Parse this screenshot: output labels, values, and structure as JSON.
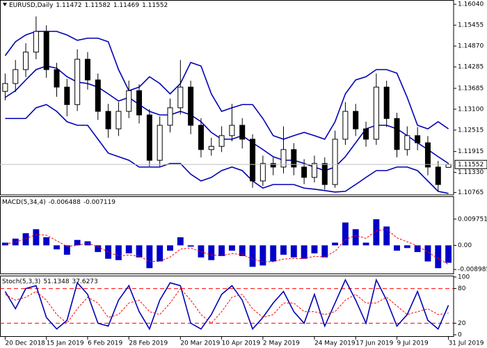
{
  "chart_data": [
    {
      "type": "candlestick",
      "symbol": "EURUSD,Daily",
      "categories": [
        "20 Dec 2018",
        null,
        null,
        null,
        "15 Jan 2019",
        null,
        null,
        null,
        "6 Feb 2019",
        null,
        null,
        null,
        "28 Feb 2019",
        null,
        null,
        null,
        null,
        "20 Mar 2019",
        null,
        null,
        null,
        "10 Apr 2019",
        null,
        null,
        null,
        "2 May 2019",
        null,
        null,
        null,
        null,
        "24 May 2019",
        null,
        null,
        null,
        "17 Jun 2019",
        null,
        null,
        null,
        "9 Jul 2019",
        null,
        null,
        null,
        null,
        "31 Jul 2019"
      ],
      "open": [
        1.136,
        1.1382,
        1.1421,
        1.147,
        1.1528,
        1.1421,
        1.1372,
        1.1323,
        1.145,
        1.1392,
        1.1304,
        1.1255,
        1.1304,
        1.1362,
        1.1294,
        1.1167,
        1.1265,
        1.1314,
        1.1372,
        1.1265,
        1.1197,
        1.1206,
        1.1236,
        1.1265,
        1.1226,
        1.1109,
        1.1158,
        1.1148,
        1.1197,
        1.1148,
        1.1119,
        1.1158,
        1.1099,
        1.1226,
        1.1304,
        1.1255,
        1.1226,
        1.1372,
        1.1284,
        1.1197,
        1.1236,
        1.1216,
        1.1148,
        1.11472
      ],
      "high": [
        1.141,
        1.1448,
        1.1495,
        1.157,
        1.1545,
        1.144,
        1.1395,
        1.1478,
        1.147,
        1.141,
        1.1325,
        1.133,
        1.139,
        1.138,
        1.131,
        1.129,
        1.134,
        1.1448,
        1.139,
        1.1285,
        1.123,
        1.1262,
        1.1325,
        1.1285,
        1.124,
        1.118,
        1.1175,
        1.1262,
        1.1215,
        1.117,
        1.118,
        1.1175,
        1.125,
        1.133,
        1.1325,
        1.1275,
        1.141,
        1.139,
        1.13,
        1.1262,
        1.126,
        1.1235,
        1.1165,
        1.11582
      ],
      "low": [
        1.1335,
        1.1358,
        1.14,
        1.145,
        1.1398,
        1.1345,
        1.129,
        1.1305,
        1.1365,
        1.128,
        1.123,
        1.1235,
        1.1285,
        1.127,
        1.115,
        1.115,
        1.1245,
        1.1295,
        1.124,
        1.1175,
        1.118,
        1.119,
        1.122,
        1.12,
        1.109,
        1.1095,
        1.1125,
        1.113,
        1.1125,
        1.11,
        1.1105,
        1.1085,
        1.109,
        1.121,
        1.1235,
        1.1205,
        1.121,
        1.126,
        1.1175,
        1.118,
        1.1195,
        1.1125,
        1.108,
        1.11469
      ],
      "close": [
        1.1382,
        1.1421,
        1.147,
        1.1528,
        1.1421,
        1.1372,
        1.1323,
        1.145,
        1.1392,
        1.1304,
        1.1255,
        1.1304,
        1.1362,
        1.1294,
        1.1167,
        1.1265,
        1.1314,
        1.1372,
        1.1265,
        1.1197,
        1.1206,
        1.1236,
        1.1265,
        1.1226,
        1.1109,
        1.1158,
        1.1148,
        1.1197,
        1.1148,
        1.1119,
        1.1158,
        1.1099,
        1.1226,
        1.1304,
        1.1255,
        1.1226,
        1.1372,
        1.1284,
        1.1197,
        1.1236,
        1.1216,
        1.1148,
        1.1099,
        1.11552
      ],
      "bands": {
        "color": "#0000b4",
        "upper": [
          1.146,
          1.1499,
          1.1518,
          1.1528,
          1.1528,
          1.1528,
          1.1518,
          1.1503,
          1.1509,
          1.1509,
          1.1499,
          1.1421,
          1.1362,
          1.1372,
          1.1401,
          1.1382,
          1.1353,
          1.1382,
          1.1441,
          1.1431,
          1.1353,
          1.1304,
          1.1314,
          1.1323,
          1.1323,
          1.1284,
          1.1236,
          1.1226,
          1.1236,
          1.1245,
          1.1236,
          1.1226,
          1.1275,
          1.1353,
          1.1392,
          1.1401,
          1.1421,
          1.1421,
          1.1411,
          1.1343,
          1.1265,
          1.1255,
          1.1275,
          1.1255
        ],
        "middle": [
          1.1343,
          1.1362,
          1.1392,
          1.1421,
          1.1431,
          1.1425,
          1.1401,
          1.1386,
          1.1382,
          1.1372,
          1.1353,
          1.1333,
          1.1343,
          1.1323,
          1.1304,
          1.1294,
          1.1294,
          1.1304,
          1.1294,
          1.1275,
          1.1245,
          1.1226,
          1.1226,
          1.1236,
          1.1216,
          1.1197,
          1.1177,
          1.1167,
          1.1167,
          1.1158,
          1.1148,
          1.1138,
          1.1148,
          1.1177,
          1.1216,
          1.1255,
          1.1265,
          1.1265,
          1.1255,
          1.1236,
          1.1216,
          1.1197,
          1.1177,
          1.1158
        ],
        "lower": [
          1.1284,
          1.1284,
          1.1284,
          1.1314,
          1.1323,
          1.1304,
          1.1275,
          1.1265,
          1.1265,
          1.1226,
          1.1187,
          1.1177,
          1.1167,
          1.1148,
          1.1148,
          1.1148,
          1.1158,
          1.1158,
          1.1128,
          1.1109,
          1.1119,
          1.1138,
          1.1148,
          1.1138,
          1.1109,
          1.1089,
          1.1099,
          1.1099,
          1.1099,
          1.1089,
          1.1086,
          1.1082,
          1.1078,
          1.108,
          1.1099,
          1.1119,
          1.1138,
          1.1138,
          1.1148,
          1.1148,
          1.1138,
          1.1109,
          1.108,
          1.1074
        ]
      },
      "up_color": "#ffffff",
      "down_color": "#000000",
      "last_price_color": "#c0c0c0",
      "ylim": [
        1.107,
        1.1616
      ],
      "yticks": [
        {
          "value": 1.1604,
          "label": "1.16040"
        },
        1.15455,
        {
          "value": 1.1487,
          "label": "1.14870"
        },
        1.14285,
        1.13685,
        {
          "value": 1.131,
          "label": "1.13100"
        },
        1.12515,
        1.11915,
        {
          "value": 1.1133,
          "label": "1.11330"
        },
        1.10765
      ]
    },
    {
      "type": "macd",
      "label": "MACD(5,34,4)",
      "series": [
        {
          "type": "bar",
          "color": "#0000c8",
          "values": [
            0.001,
            0.0025,
            0.0045,
            0.006,
            0.003,
            -0.0015,
            -0.0035,
            0.002,
            0.0015,
            -0.0025,
            -0.005,
            -0.0055,
            -0.003,
            -0.0045,
            -0.0085,
            -0.006,
            -0.002,
            0.003,
            -0.0005,
            -0.0045,
            -0.0055,
            -0.004,
            -0.002,
            -0.004,
            -0.008,
            -0.0075,
            -0.006,
            -0.0035,
            -0.0045,
            -0.005,
            -0.003,
            -0.0045,
            0.001,
            0.0085,
            0.006,
            0.001,
            0.0097,
            0.007,
            -0.002,
            -0.001,
            -0.0025,
            -0.006,
            -0.0085,
            -0.006488
          ]
        },
        {
          "type": "line",
          "color": "#ff0000",
          "dashed": true,
          "values": [
            0.0005,
            0.0012,
            0.0025,
            0.004,
            0.0038,
            0.0017,
            -0.0004,
            0.0,
            0.0008,
            -0.0005,
            -0.0025,
            -0.004,
            -0.0036,
            -0.004,
            -0.006,
            -0.006,
            -0.0044,
            -0.0014,
            -0.001,
            -0.0024,
            -0.0036,
            -0.0038,
            -0.0031,
            -0.0034,
            -0.0052,
            -0.0061,
            -0.0061,
            -0.0051,
            -0.0049,
            -0.0049,
            -0.0041,
            -0.0043,
            -0.0022,
            0.0021,
            0.0037,
            0.0026,
            0.0054,
            0.006,
            0.0028,
            0.0013,
            -0.0002,
            -0.0025,
            -0.0049,
            -0.007119
          ]
        }
      ],
      "ylim": [
        -0.0105,
        0.018
      ],
      "yticks": [
        0.009751,
        {
          "value": 0,
          "label": "0.00"
        },
        -0.008985
      ]
    },
    {
      "type": "stochastic",
      "label": "Stoch(5,3,3)",
      "series": [
        {
          "type": "line",
          "color": "#0000b4",
          "dashed": false,
          "values": [
            75,
            45,
            80,
            85,
            30,
            10,
            25,
            90,
            70,
            20,
            15,
            60,
            85,
            40,
            10,
            60,
            90,
            85,
            20,
            10,
            35,
            70,
            85,
            60,
            10,
            30,
            55,
            75,
            40,
            20,
            70,
            15,
            55,
            95,
            60,
            20,
            95,
            60,
            15,
            35,
            75,
            25,
            10,
            51.1348
          ]
        },
        {
          "type": "line",
          "color": "#ff0000",
          "dashed": true,
          "values": [
            70,
            60,
            65,
            75,
            60,
            35,
            20,
            45,
            65,
            55,
            30,
            35,
            55,
            60,
            40,
            35,
            55,
            80,
            60,
            35,
            20,
            40,
            65,
            70,
            45,
            30,
            35,
            55,
            55,
            40,
            40,
            35,
            40,
            60,
            70,
            55,
            55,
            65,
            50,
            35,
            40,
            45,
            35,
            37.6273
          ]
        }
      ],
      "levels": [
        20,
        80
      ],
      "level_color": "#ff0000",
      "ylim": [
        0,
        100
      ],
      "yticks": [
        100,
        80,
        20,
        0
      ]
    }
  ]
}
